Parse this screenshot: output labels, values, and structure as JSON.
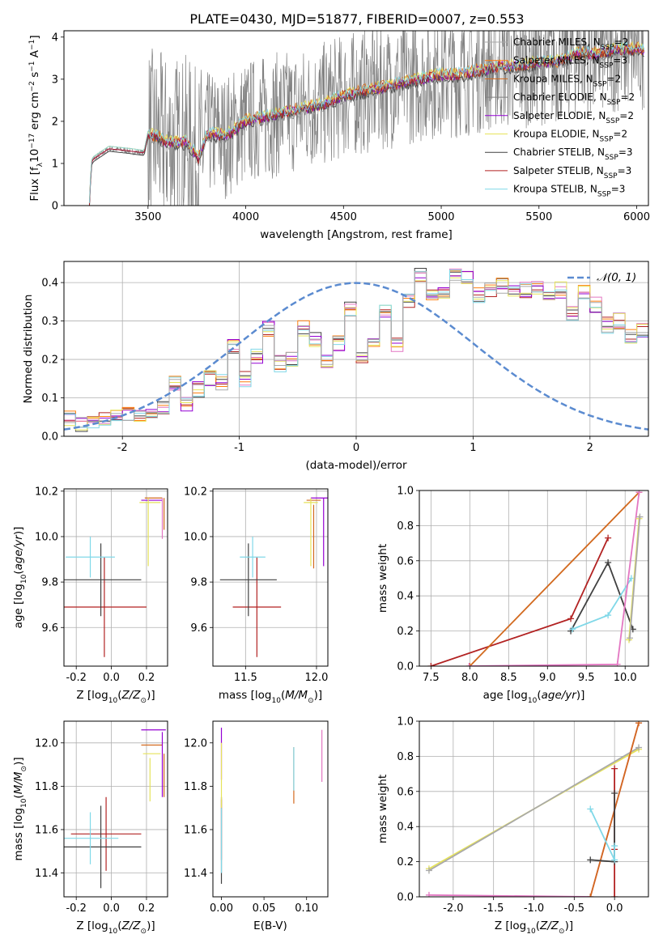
{
  "chart_data": [
    {
      "type": "line",
      "title": "PLATE=0430, MJD=51877, FIBERID=0007, z=0.553",
      "xlabel": "wavelength [Angstrom, rest frame]",
      "ylabel": "Flux [f_λ 10^-17 erg cm^-2 s^-1 A^-1]",
      "xlim": [
        3070,
        6060
      ],
      "ylim": [
        0,
        4.15
      ],
      "xticks": [
        3500,
        4000,
        4500,
        5000,
        5500,
        6000
      ],
      "yticks": [
        0,
        1,
        2,
        3,
        4
      ],
      "grid": false,
      "legend_position": "top-right",
      "series": [
        {
          "name": "Chabrier MILES, N_SSP=2",
          "color": "#a9a9a9"
        },
        {
          "name": "Salpeter MILES, N_SSP=3",
          "color": "#ff7f0e"
        },
        {
          "name": "Kroupa MILES, N_SSP=2",
          "color": "#d2691e"
        },
        {
          "name": "Chabrier ELODIE, N_SSP=2",
          "color": "#808080"
        },
        {
          "name": "Salpeter ELODIE, N_SSP=2",
          "color": "#9400d3"
        },
        {
          "name": "Kroupa ELODIE, N_SSP=2",
          "color": "#e6e35a"
        },
        {
          "name": "Chabrier STELIB, N_SSP=3",
          "color": "#404040"
        },
        {
          "name": "Salpeter STELIB, N_SSP=3",
          "color": "#b22222"
        },
        {
          "name": "Kroupa STELIB, N_SSP=3",
          "color": "#80d8e8"
        }
      ],
      "spectrum_x": [
        3200,
        3210,
        3220,
        3300,
        3400,
        3480,
        3500,
        3600,
        3700,
        3760,
        3800,
        3900,
        4000,
        4100,
        4200,
        4300,
        4400,
        4500,
        4600,
        4700,
        4800,
        4900,
        5000,
        5100,
        5200,
        5300,
        5400,
        5500,
        5600,
        5700,
        5800,
        5900,
        6000
      ],
      "spectrum_y": [
        0.0,
        1.0,
        1.1,
        1.35,
        1.3,
        1.25,
        1.7,
        1.5,
        1.5,
        1.1,
        1.7,
        1.65,
        2.0,
        2.1,
        2.2,
        2.3,
        2.4,
        2.6,
        2.7,
        2.8,
        2.9,
        3.0,
        3.1,
        3.1,
        3.2,
        3.3,
        3.3,
        3.4,
        3.4,
        3.6,
        3.6,
        3.7,
        3.7
      ],
      "noise_x": [
        3500,
        6000
      ]
    },
    {
      "type": "bar",
      "xlabel": "(data-model)/error",
      "ylabel": "Normed distribution",
      "xlim": [
        -2.5,
        2.5
      ],
      "ylim": [
        0,
        0.455
      ],
      "xticks": [
        -2,
        -1,
        0,
        1,
        2
      ],
      "yticks": [
        0.0,
        0.1,
        0.2,
        0.3,
        0.4
      ],
      "grid": true,
      "legend_position": "top-right",
      "legend": [
        "𝒩(0, 1)"
      ],
      "bin_edges_start": -2.5,
      "bin_width": 0.1,
      "hist_heights": [
        0.05,
        0.03,
        0.04,
        0.05,
        0.06,
        0.06,
        0.05,
        0.07,
        0.07,
        0.14,
        0.08,
        0.12,
        0.15,
        0.14,
        0.23,
        0.15,
        0.21,
        0.28,
        0.19,
        0.2,
        0.28,
        0.25,
        0.19,
        0.24,
        0.33,
        0.2,
        0.25,
        0.32,
        0.24,
        0.35,
        0.42,
        0.36,
        0.38,
        0.42,
        0.41,
        0.37,
        0.38,
        0.39,
        0.37,
        0.38,
        0.39,
        0.36,
        0.38,
        0.32,
        0.38,
        0.34,
        0.29,
        0.3,
        0.26,
        0.28,
        0.28,
        0.34,
        0.29,
        0.23,
        0.21,
        0.2,
        0.21,
        0.17,
        0.2,
        0.15,
        0.16,
        0.15,
        0.15,
        0.12,
        0.15,
        0.08,
        0.13,
        0.09,
        0.06,
        0.07,
        0.04,
        0.04,
        0.05,
        0.05,
        0.04
      ],
      "hist_series_colors": [
        "#b22222",
        "#404040",
        "#ff7f0e",
        "#e377c2",
        "#9400d3",
        "#e6e35a",
        "#80d8e8",
        "#a9a9a9"
      ],
      "normal_curve": {
        "mu": 0,
        "sigma": 1,
        "color": "#5b8bd0"
      }
    },
    {
      "type": "scatter",
      "xlabel": "Z [log10(Z/Z⊙)]",
      "ylabel": "age  [log10(age/yr)]",
      "xlim": [
        -0.27,
        0.32
      ],
      "ylim": [
        9.43,
        10.21
      ],
      "xticks": [
        -0.2,
        0.0,
        0.2
      ],
      "yticks": [
        9.6,
        9.8,
        10.0,
        10.2
      ],
      "grid": true,
      "errorbars": [
        {
          "x": -0.04,
          "xerr": 0.24,
          "y": 9.69,
          "yerr": 0.22,
          "color": "#b22222"
        },
        {
          "x": -0.06,
          "xerr": 0.23,
          "y": 9.81,
          "yerr": 0.16,
          "color": "#404040"
        },
        {
          "x": -0.12,
          "xerr": 0.14,
          "y": 9.91,
          "yerr": 0.09,
          "color": "#80d8e8"
        },
        {
          "x": 0.24,
          "xerr": 0.05,
          "y": 10.17,
          "yerr": 0.0,
          "color": "#d2691e"
        },
        {
          "x": 0.23,
          "xerr": 0.06,
          "y": 10.16,
          "yerr": 0.0,
          "color": "#9400d3"
        },
        {
          "x": 0.22,
          "xerr": 0.06,
          "y": 10.15,
          "yerr": 0.0,
          "color": "#e6e35a"
        },
        {
          "x": 0.29,
          "xerr": 0.0,
          "y": 10.08,
          "yerr": 0.09,
          "color": "#e377c2"
        },
        {
          "x": 0.3,
          "xerr": 0.0,
          "y": 10.1,
          "yerr": 0.07,
          "color": "#d2691e"
        },
        {
          "x": 0.21,
          "xerr": 0.0,
          "y": 10.02,
          "yerr": 0.15,
          "color": "#e6e35a"
        }
      ]
    },
    {
      "type": "scatter",
      "xlabel": "mass [log10(M/M⊙)]",
      "ylabel": "",
      "xlim": [
        11.27,
        12.08
      ],
      "ylim": [
        9.43,
        10.21
      ],
      "xticks": [
        11.5,
        12.0
      ],
      "yticks": [
        9.6,
        9.8,
        10.0,
        10.2
      ],
      "grid": true,
      "errorbars": [
        {
          "x": 11.58,
          "xerr": 0.17,
          "y": 9.69,
          "yerr": 0.22,
          "color": "#b22222"
        },
        {
          "x": 11.52,
          "xerr": 0.2,
          "y": 9.81,
          "yerr": 0.16,
          "color": "#404040"
        },
        {
          "x": 11.55,
          "xerr": 0.09,
          "y": 9.91,
          "yerr": 0.09,
          "color": "#80d8e8"
        },
        {
          "x": 12.02,
          "xerr": 0.06,
          "y": 10.17,
          "yerr": 0.0,
          "color": "#9400d3"
        },
        {
          "x": 11.98,
          "xerr": 0.05,
          "y": 10.16,
          "yerr": 0.0,
          "color": "#d2691e"
        },
        {
          "x": 11.96,
          "xerr": 0.05,
          "y": 10.15,
          "yerr": 0.0,
          "color": "#e6e35a"
        },
        {
          "x": 12.05,
          "xerr": 0.0,
          "y": 10.02,
          "yerr": 0.15,
          "color": "#9400d3"
        },
        {
          "x": 11.98,
          "xerr": 0.0,
          "y": 10.0,
          "yerr": 0.14,
          "color": "#d2691e"
        },
        {
          "x": 11.96,
          "xerr": 0.0,
          "y": 10.02,
          "yerr": 0.15,
          "color": "#e6e35a"
        }
      ]
    },
    {
      "type": "line",
      "xlabel": "age  [log10(age/yr)]",
      "ylabel": "mass weight",
      "xlim": [
        7.35,
        10.3
      ],
      "ylim": [
        0,
        1.0
      ],
      "xticks": [
        7.5,
        8.0,
        8.5,
        9.0,
        9.5,
        10.0
      ],
      "yticks": [
        0.0,
        0.2,
        0.4,
        0.6,
        0.8,
        1.0
      ],
      "grid": true,
      "series": [
        {
          "color": "#b22222",
          "x": [
            7.5,
            9.3,
            9.78
          ],
          "y": [
            0.0,
            0.27,
            0.73
          ]
        },
        {
          "color": "#404040",
          "x": [
            9.3,
            9.78,
            10.1
          ],
          "y": [
            0.2,
            0.59,
            0.21
          ]
        },
        {
          "color": "#80d8e8",
          "x": [
            9.32,
            9.78,
            10.08
          ],
          "y": [
            0.21,
            0.29,
            0.5
          ]
        },
        {
          "color": "#d2691e",
          "x": [
            8.0,
            10.18
          ],
          "y": [
            0.0,
            0.99
          ]
        },
        {
          "color": "#e377c2",
          "x": [
            7.99,
            9.9,
            10.18
          ],
          "y": [
            0.0,
            0.01,
            0.99
          ]
        },
        {
          "color": "#e6e35a",
          "x": [
            10.05,
            10.18
          ],
          "y": [
            0.15,
            0.84
          ]
        },
        {
          "color": "#a9a9a9",
          "x": [
            10.06,
            10.19
          ],
          "y": [
            0.16,
            0.85
          ]
        }
      ]
    },
    {
      "type": "scatter",
      "xlabel": "Z [log10(Z/Z⊙)]",
      "ylabel": "mass [log10(M/M⊙)]",
      "xlim": [
        -0.27,
        0.32
      ],
      "ylim": [
        11.29,
        12.1
      ],
      "xticks": [
        -0.2,
        0.0,
        0.2
      ],
      "yticks": [
        11.4,
        11.6,
        11.8,
        12.0
      ],
      "grid": true,
      "errorbars": [
        {
          "x": -0.03,
          "xerr": 0.2,
          "y": 11.58,
          "yerr": 0.17,
          "color": "#b22222"
        },
        {
          "x": -0.06,
          "xerr": 0.23,
          "y": 11.52,
          "yerr": 0.19,
          "color": "#404040"
        },
        {
          "x": -0.12,
          "xerr": 0.16,
          "y": 11.56,
          "yerr": 0.12,
          "color": "#80d8e8"
        },
        {
          "x": 0.24,
          "xerr": 0.07,
          "y": 12.06,
          "yerr": 0.0,
          "color": "#9400d3"
        },
        {
          "x": 0.23,
          "xerr": 0.06,
          "y": 11.99,
          "yerr": 0.0,
          "color": "#d2691e"
        },
        {
          "x": 0.23,
          "xerr": 0.05,
          "y": 11.95,
          "yerr": 0.0,
          "color": "#e6e35a"
        },
        {
          "x": 0.29,
          "xerr": 0.0,
          "y": 11.9,
          "yerr": 0.15,
          "color": "#9400d3"
        },
        {
          "x": 0.3,
          "xerr": 0.0,
          "y": 11.85,
          "yerr": 0.1,
          "color": "#d2691e"
        },
        {
          "x": 0.22,
          "xerr": 0.0,
          "y": 11.83,
          "yerr": 0.1,
          "color": "#e6e35a"
        }
      ]
    },
    {
      "type": "scatter",
      "xlabel": "E(B-V)",
      "ylabel": "",
      "xlim": [
        -0.01,
        0.125
      ],
      "ylim": [
        11.29,
        12.1
      ],
      "xticks": [
        0.0,
        0.05,
        0.1
      ],
      "yticks": [
        11.4,
        11.6,
        11.8,
        12.0
      ],
      "grid": false,
      "errorbars": [
        {
          "x": 0.0,
          "xerr": 0.0,
          "y": 11.55,
          "yerr": 0.2,
          "color": "#404040"
        },
        {
          "x": 0.0,
          "xerr": 0.0,
          "y": 11.6,
          "yerr": 0.14,
          "color": "#b22222"
        },
        {
          "x": 0.0,
          "xerr": 0.0,
          "y": 11.55,
          "yerr": 0.15,
          "color": "#80d8e8"
        },
        {
          "x": 0.0,
          "xerr": 0.0,
          "y": 11.95,
          "yerr": 0.12,
          "color": "#9400d3"
        },
        {
          "x": 0.0,
          "xerr": 0.0,
          "y": 11.85,
          "yerr": 0.15,
          "color": "#e6e35a"
        },
        {
          "x": 0.085,
          "xerr": 0.0,
          "y": 11.85,
          "yerr": 0.13,
          "color": "#d2691e"
        },
        {
          "x": 0.085,
          "xerr": 0.0,
          "y": 11.88,
          "yerr": 0.1,
          "color": "#80d8e8"
        },
        {
          "x": 0.118,
          "xerr": 0.0,
          "y": 11.94,
          "yerr": 0.12,
          "color": "#e377c2"
        }
      ]
    },
    {
      "type": "line",
      "xlabel": "Z [log10(Z/Z⊙)]",
      "ylabel": "mass weight",
      "xlim": [
        -2.42,
        0.42
      ],
      "ylim": [
        0,
        1.0
      ],
      "xticks": [
        -2.0,
        -1.5,
        -1.0,
        -0.5,
        0.0
      ],
      "yticks": [
        0.0,
        0.2,
        0.4,
        0.6,
        0.8,
        1.0
      ],
      "grid": true,
      "series": [
        {
          "color": "#e6e35a",
          "x": [
            -2.3,
            0.3
          ],
          "y": [
            0.16,
            0.84
          ]
        },
        {
          "color": "#a9a9a9",
          "x": [
            -2.3,
            0.3
          ],
          "y": [
            0.15,
            0.85
          ]
        },
        {
          "color": "#e377c2",
          "x": [
            -2.3,
            -0.3,
            0.3
          ],
          "y": [
            0.01,
            0.0,
            0.99
          ]
        },
        {
          "color": "#d2691e",
          "x": [
            -0.3,
            0.3
          ],
          "y": [
            0.0,
            0.99
          ]
        },
        {
          "color": "#b22222",
          "x": [
            0.0,
            0.0,
            0.0
          ],
          "y": [
            0.0,
            0.27,
            0.73
          ]
        },
        {
          "color": "#404040",
          "x": [
            -0.3,
            0.0,
            0.0
          ],
          "y": [
            0.21,
            0.2,
            0.59
          ]
        },
        {
          "color": "#80d8e8",
          "x": [
            -0.3,
            0.0,
            0.0
          ],
          "y": [
            0.5,
            0.21,
            0.29
          ]
        }
      ]
    }
  ]
}
